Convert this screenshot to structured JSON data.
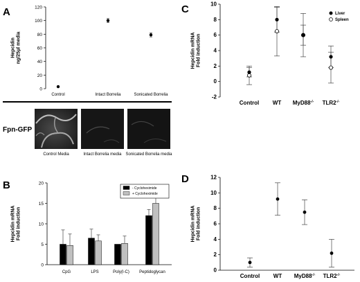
{
  "panels": {
    "a": "A",
    "b": "B",
    "c": "C",
    "d": "D"
  },
  "fpn_label": "Fpn-GFP",
  "micrographs": [
    {
      "caption": "Control Media"
    },
    {
      "caption": "Intact Borrelia media"
    },
    {
      "caption": "Sonicated Borrelia media"
    }
  ],
  "chart_data": [
    {
      "panel": "A",
      "type": "scatter",
      "categories": [
        "Control",
        "Intact Borrelia",
        "Sonicated Borrelia"
      ],
      "values": [
        3,
        100,
        79
      ],
      "errors": [
        0,
        3,
        3
      ],
      "ylabel": [
        "Hepcidin",
        "ng/25µl media"
      ],
      "ylim": [
        0,
        120
      ],
      "yticks": [
        0,
        20,
        40,
        60,
        80,
        100,
        120
      ],
      "grid": false
    },
    {
      "panel": "B",
      "type": "bar",
      "categories": [
        "CpG",
        "LPS",
        "Poly(I-C)",
        "Peptidoglycan"
      ],
      "series": [
        {
          "name": "- Cycloheximide",
          "color": "#000000",
          "values": [
            5.0,
            6.5,
            5.0,
            12.0
          ],
          "errors": [
            3.5,
            2.2,
            0,
            1.5
          ]
        },
        {
          "name": "+ Cycloheximide",
          "color": "#c0c0c0",
          "values": [
            4.7,
            5.8,
            5.2,
            15.0
          ],
          "errors": [
            2.8,
            1.5,
            1.8,
            2.7
          ]
        }
      ],
      "ylabel": [
        "Hepcidin mRNA",
        "Fold induction"
      ],
      "ylim": [
        0,
        20
      ],
      "yticks": [
        0,
        5,
        10,
        15,
        20
      ],
      "legend_position": "top-right",
      "grid": false
    },
    {
      "panel": "C",
      "type": "scatter",
      "categories": [
        "Control",
        "WT",
        "MyD88",
        "TLR2"
      ],
      "category_superscripts": [
        "",
        "",
        "-/-",
        "-/-"
      ],
      "series": [
        {
          "name": "Liver",
          "marker": "filled-circle",
          "values": [
            1.2,
            8.0,
            6.0,
            3.2
          ],
          "errors": [
            0.6,
            1.6,
            1.3,
            1.4
          ]
        },
        {
          "name": "Spleen",
          "marker": "open-circle",
          "values": [
            0.8,
            6.5,
            6.0,
            1.8
          ],
          "errors": [
            1.2,
            3.2,
            2.8,
            2.0
          ]
        }
      ],
      "ylabel": [
        "Hepcidin mRNA",
        "Fold induction"
      ],
      "ylim": [
        -2,
        10
      ],
      "yticks": [
        -2,
        0,
        2,
        4,
        6,
        8,
        10
      ],
      "legend_position": "top-right",
      "grid": false
    },
    {
      "panel": "D",
      "type": "scatter",
      "categories": [
        "Control",
        "WT",
        "MyD88",
        "TLR2"
      ],
      "category_superscripts": [
        "",
        "",
        "-/-",
        "-/-"
      ],
      "values": [
        1.0,
        9.2,
        7.5,
        2.2
      ],
      "errors": [
        0.6,
        2.1,
        1.6,
        1.8
      ],
      "ylabel": [
        "Hepcidin mRNA",
        "Fold induction"
      ],
      "ylim": [
        0,
        12
      ],
      "yticks": [
        0,
        2,
        4,
        6,
        8,
        10,
        12
      ],
      "grid": false
    }
  ]
}
